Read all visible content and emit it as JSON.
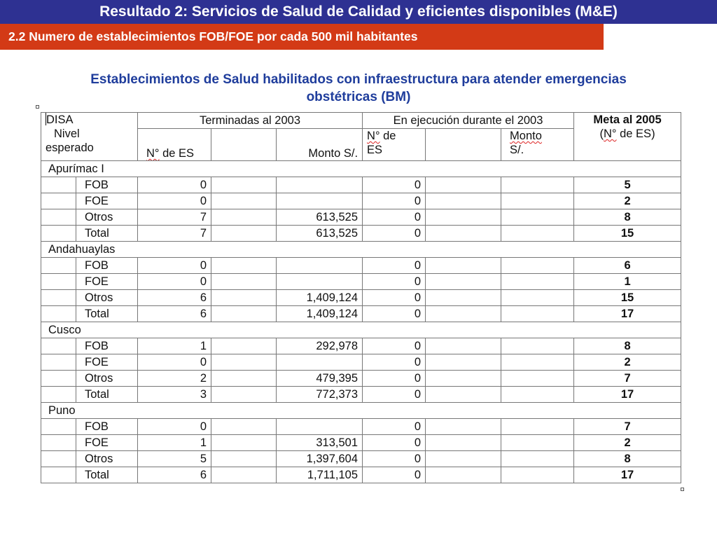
{
  "header": {
    "title": "Resultado 2: Servicios de Salud de Calidad y eficientes disponibles (M&E)",
    "subtitle": "2.2 Numero de establecimientos FOB/FOE por cada 500 mil habitantes"
  },
  "heading": {
    "line1": "Establecimientos de Salud habilitados con infraestructura para atender emergencias",
    "line2": "obstétricas (BM)"
  },
  "table": {
    "headers": {
      "disa": "DISA",
      "nivel": "Nivel",
      "esperado": "esperado",
      "terminadas": "Terminadas al 2003",
      "ejecucion": "En ejecución durante el 2003",
      "meta_line1": "Meta al 2005",
      "meta_line2_prefix": "(",
      "meta_line2_no": "N°",
      "meta_line2_rest": " de ES)",
      "n_es_no": "N°",
      "n_es_rest": " de ES",
      "monto": "Monto S/.",
      "n_de_no": "N°",
      "n_de_rest": " de",
      "es": "ES",
      "monto2_a": "Monto",
      "monto2_b": "S/."
    },
    "groups": [
      {
        "name": "Apurímac I",
        "rows": [
          {
            "nivel": "FOB",
            "term_n": "0",
            "term_monto": "",
            "ejec_n": "0",
            "ejec_monto": "",
            "meta": "5"
          },
          {
            "nivel": "FOE",
            "term_n": "0",
            "term_monto": "",
            "ejec_n": "0",
            "ejec_monto": "",
            "meta": "2"
          },
          {
            "nivel": "Otros",
            "term_n": "7",
            "term_monto": "613,525",
            "ejec_n": "0",
            "ejec_monto": "",
            "meta": "8"
          },
          {
            "nivel": "Total",
            "term_n": "7",
            "term_monto": "613,525",
            "ejec_n": "0",
            "ejec_monto": "",
            "meta": "15"
          }
        ]
      },
      {
        "name": "Andahuaylas",
        "rows": [
          {
            "nivel": "FOB",
            "term_n": "0",
            "term_monto": "",
            "ejec_n": "0",
            "ejec_monto": "",
            "meta": "6"
          },
          {
            "nivel": "FOE",
            "term_n": "0",
            "term_monto": "",
            "ejec_n": "0",
            "ejec_monto": "",
            "meta": "1"
          },
          {
            "nivel": "Otros",
            "term_n": "6",
            "term_monto": "1,409,124",
            "ejec_n": "0",
            "ejec_monto": "",
            "meta": "15"
          },
          {
            "nivel": "Total",
            "term_n": "6",
            "term_monto": "1,409,124",
            "ejec_n": "0",
            "ejec_monto": "",
            "meta": "17"
          }
        ]
      },
      {
        "name": "Cusco",
        "rows": [
          {
            "nivel": "FOB",
            "term_n": "1",
            "term_monto": "292,978",
            "ejec_n": "0",
            "ejec_monto": "",
            "meta": "8"
          },
          {
            "nivel": "FOE",
            "term_n": "0",
            "term_monto": "",
            "ejec_n": "0",
            "ejec_monto": "",
            "meta": "2"
          },
          {
            "nivel": "Otros",
            "term_n": "2",
            "term_monto": "479,395",
            "ejec_n": "0",
            "ejec_monto": "",
            "meta": "7"
          },
          {
            "nivel": "Total",
            "term_n": "3",
            "term_monto": "772,373",
            "ejec_n": "0",
            "ejec_monto": "",
            "meta": "17"
          }
        ]
      },
      {
        "name": "Puno",
        "rows": [
          {
            "nivel": "FOB",
            "term_n": "0",
            "term_monto": "",
            "ejec_n": "0",
            "ejec_monto": "",
            "meta": "7"
          },
          {
            "nivel": "FOE",
            "term_n": "1",
            "term_monto": "313,501",
            "ejec_n": "0",
            "ejec_monto": "",
            "meta": "2"
          },
          {
            "nivel": "Otros",
            "term_n": "5",
            "term_monto": "1,397,604",
            "ejec_n": "0",
            "ejec_monto": "",
            "meta": "8"
          },
          {
            "nivel": "Total",
            "term_n": "6",
            "term_monto": "1,711,105",
            "ejec_n": "0",
            "ejec_monto": "",
            "meta": "17"
          }
        ]
      }
    ]
  },
  "colors": {
    "banner": "#2e3192",
    "subbanner": "#d33a16",
    "heading": "#1f3d9c"
  }
}
